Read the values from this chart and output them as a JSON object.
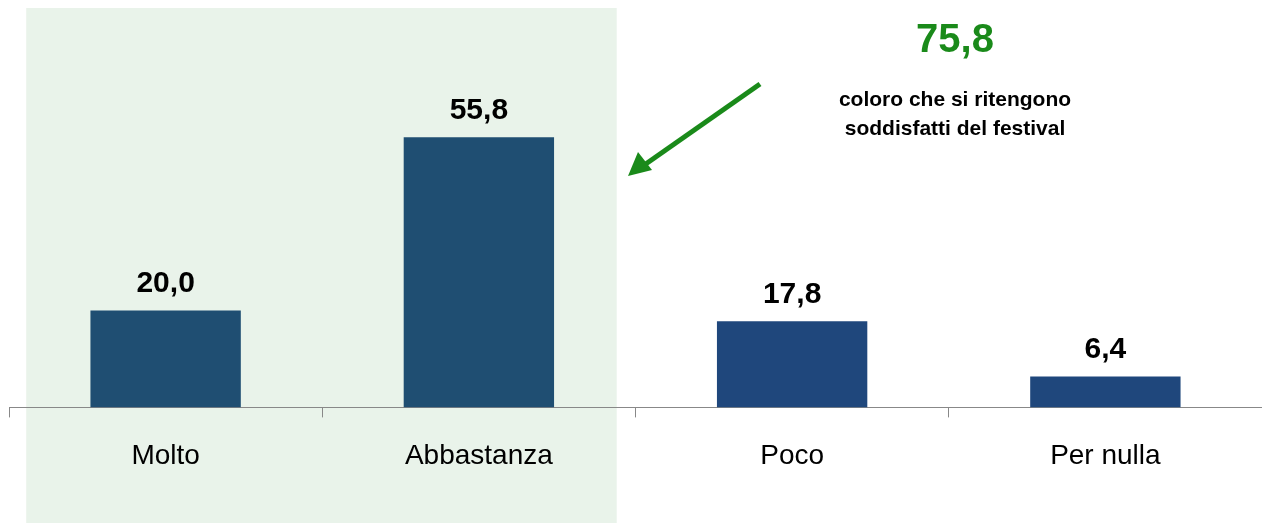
{
  "chart_data": {
    "type": "bar",
    "categories": [
      "Molto",
      "Abbastanza",
      "Poco",
      "Per nulla"
    ],
    "values": [
      20.0,
      55.8,
      17.8,
      6.4
    ],
    "colors": [
      "#1f4e72",
      "#1f4e72",
      "#1f477c",
      "#1f477c"
    ],
    "value_labels": [
      "20,0",
      "55,8",
      "17,8",
      "6,4"
    ],
    "tick_labels": "x",
    "grid": false,
    "legend": false,
    "bands": [
      {
        "axis": "x",
        "from": "Abbastanza",
        "to": "Molto",
        "color": "#e9f3ea"
      }
    ],
    "annotations": [
      "75,8",
      "coloro che si ritengono soddisfatti del festival"
    ]
  }
}
